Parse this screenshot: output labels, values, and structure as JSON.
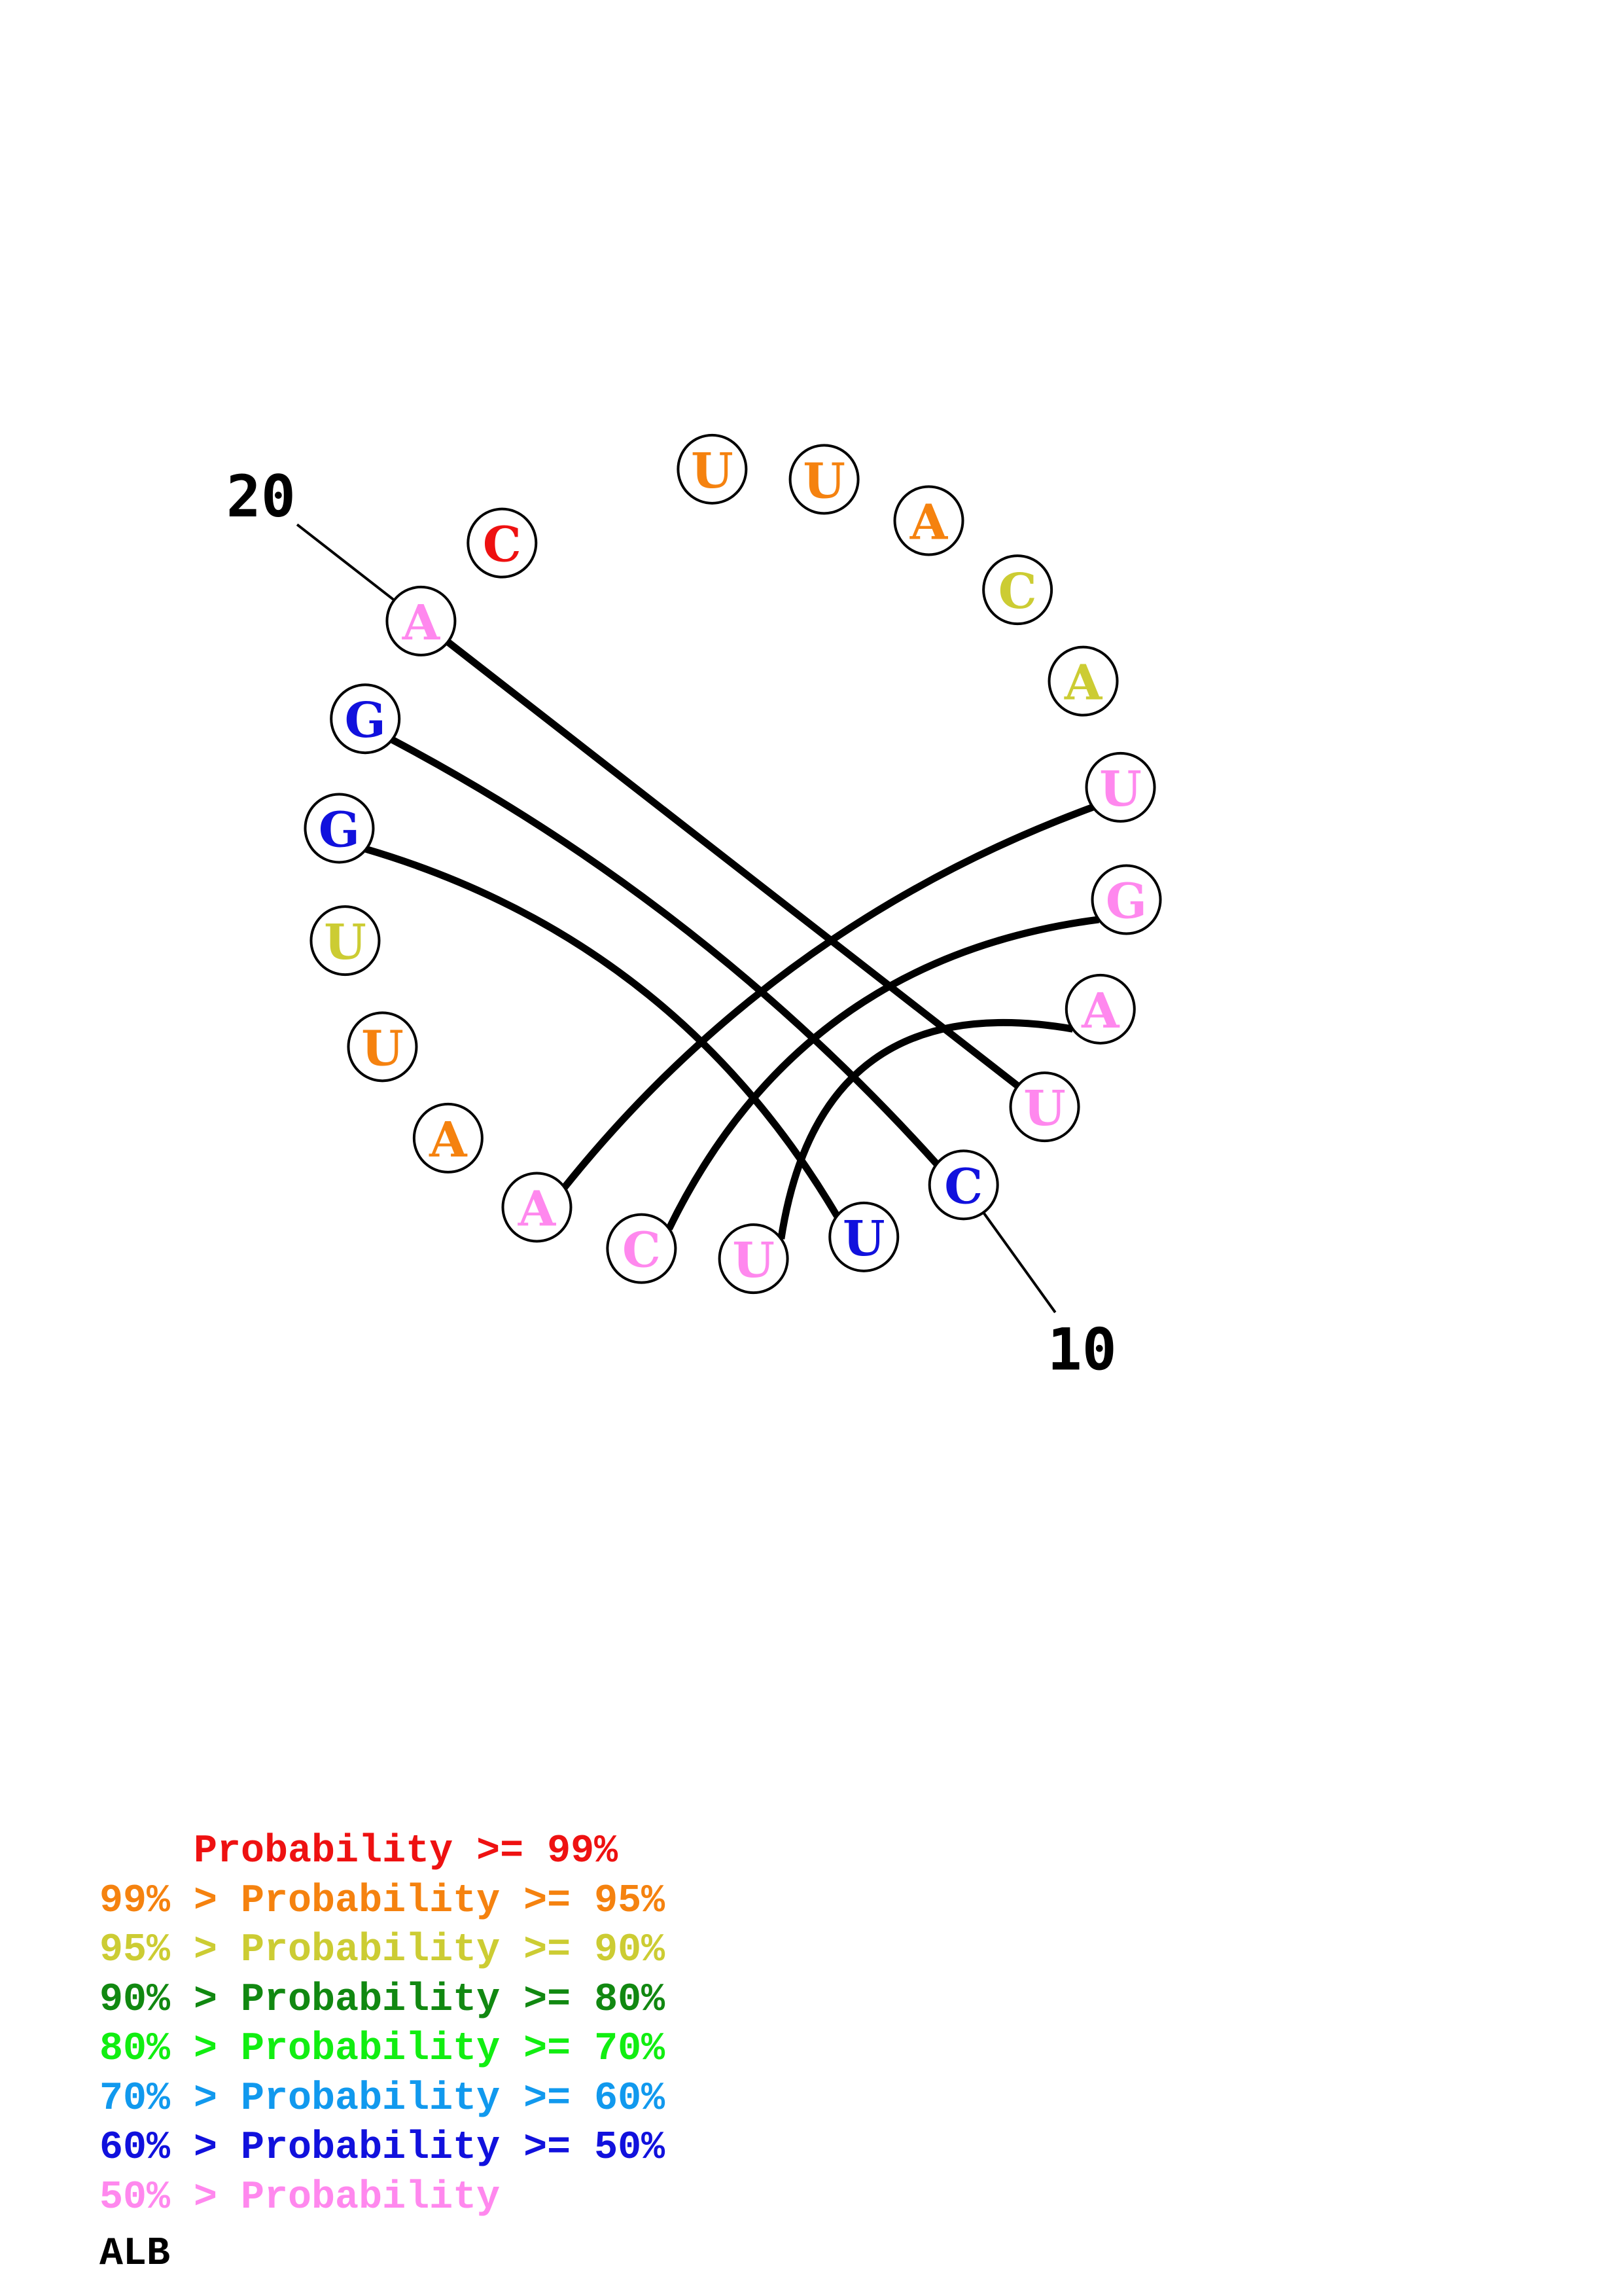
{
  "colors": {
    "red": "#ee1111",
    "orange": "#f5820f",
    "yellow": "#cccc33",
    "darkgreen": "#118811",
    "green": "#11ee11",
    "cyan": "#1199ee",
    "blue": "#1111dd",
    "pink": "#ff88ee"
  },
  "nucleotides": [
    {
      "index": 1,
      "base": "U",
      "color": "orange"
    },
    {
      "index": 2,
      "base": "U",
      "color": "orange"
    },
    {
      "index": 3,
      "base": "A",
      "color": "orange"
    },
    {
      "index": 4,
      "base": "C",
      "color": "yellow"
    },
    {
      "index": 5,
      "base": "A",
      "color": "yellow"
    },
    {
      "index": 6,
      "base": "U",
      "color": "pink"
    },
    {
      "index": 7,
      "base": "G",
      "color": "pink"
    },
    {
      "index": 8,
      "base": "A",
      "color": "pink"
    },
    {
      "index": 9,
      "base": "U",
      "color": "pink"
    },
    {
      "index": 10,
      "base": "C",
      "color": "blue"
    },
    {
      "index": 11,
      "base": "U",
      "color": "blue"
    },
    {
      "index": 12,
      "base": "U",
      "color": "pink"
    },
    {
      "index": 13,
      "base": "C",
      "color": "pink"
    },
    {
      "index": 14,
      "base": "A",
      "color": "pink"
    },
    {
      "index": 15,
      "base": "A",
      "color": "orange"
    },
    {
      "index": 16,
      "base": "U",
      "color": "orange"
    },
    {
      "index": 17,
      "base": "U",
      "color": "yellow"
    },
    {
      "index": 18,
      "base": "G",
      "color": "blue"
    },
    {
      "index": 19,
      "base": "G",
      "color": "blue"
    },
    {
      "index": 20,
      "base": "A",
      "color": "pink"
    },
    {
      "index": 21,
      "base": "C",
      "color": "red"
    }
  ],
  "pairs": [
    [
      6,
      14
    ],
    [
      7,
      13
    ],
    [
      8,
      12
    ],
    [
      9,
      20
    ],
    [
      10,
      19
    ],
    [
      11,
      18
    ]
  ],
  "position_labels": [
    {
      "index": 10,
      "text": "10"
    },
    {
      "index": 20,
      "text": "20"
    }
  ],
  "legend": [
    {
      "text": "    Probability >= 99%",
      "color": "red"
    },
    {
      "text": "99% > Probability >= 95%",
      "color": "orange"
    },
    {
      "text": "95% > Probability >= 90%",
      "color": "yellow"
    },
    {
      "text": "90% > Probability >= 80%",
      "color": "darkgreen"
    },
    {
      "text": "80% > Probability >= 70%",
      "color": "green"
    },
    {
      "text": "70% > Probability >= 60%",
      "color": "cyan"
    },
    {
      "text": "60% > Probability >= 50%",
      "color": "blue"
    },
    {
      "text": "50% > Probability",
      "color": "pink"
    }
  ],
  "footer_label": "ALB"
}
